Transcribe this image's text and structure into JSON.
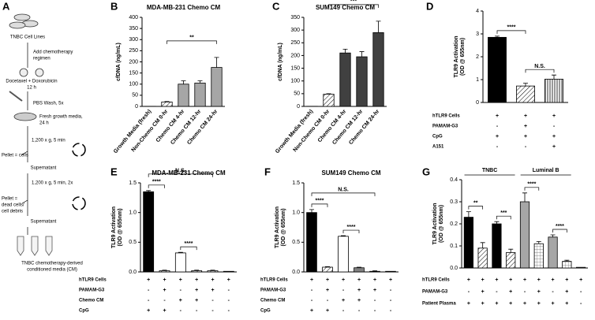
{
  "panel_a": {
    "label": "A",
    "lines": [
      "TNBC Cell Lines",
      "Add chemotherapy",
      "regimen",
      "Docetaxel + Doxorubicin",
      "12 h",
      "PBS Wash, 5x",
      "Fresh growth media,",
      "24 h",
      "1,200 x g, 5 min",
      "Pellet = cells",
      "Supernatant",
      "1,200 x g, 5 min, 2x",
      "Pellet =",
      "dead cells/",
      "cell debris",
      "Supernatant",
      "TNBC chemotherapy-derived",
      "conditioned media (CM)"
    ]
  },
  "chart_data": [
    {
      "type": "bar",
      "label": "B",
      "title": "MDA-MB-231 Chemo CM",
      "y_label": [
        "cfDNA (ng/mL)"
      ],
      "categories": [
        "Growth Media (fresh)",
        "Non-Chemo CM 0-hr",
        "Chemo CM 4-hr",
        "Chemo CM 12-hr",
        "Chemo CM 24-hr"
      ],
      "series": [
        {
          "values": [
            0.5,
            20,
            100,
            105,
            175
          ],
          "errors": [
            0,
            2,
            15,
            10,
            45
          ],
          "colors": [
            "#ffffff",
            "#ffffff",
            "#a6a6a6",
            "#a6a6a6",
            "#a6a6a6"
          ],
          "patterns": [
            "none",
            "hatch",
            "none",
            "none",
            "none"
          ]
        }
      ],
      "ylim": [
        0,
        400
      ],
      "yticks": [
        0,
        50,
        100,
        150,
        200,
        250,
        300,
        350,
        400
      ],
      "brackets": [
        {
          "text": "**",
          "bars": [
            1,
            4
          ]
        }
      ]
    },
    {
      "type": "bar",
      "label": "C",
      "title": "SUM149 Chemo CM",
      "y_label": [
        "cfDNA (ng/mL)"
      ],
      "categories": [
        "Growth Media (fresh)",
        "Non-Chemo CM 0-hr",
        "Chemo CM 4-hr",
        "Chemo CM 12-hr",
        "Chemo CM 24-hr"
      ],
      "series": [
        {
          "values": [
            0.5,
            48,
            210,
            195,
            290
          ],
          "errors": [
            0,
            2,
            15,
            20,
            45
          ],
          "colors": [
            "#ffffff",
            "#ffffff",
            "#404040",
            "#404040",
            "#404040"
          ],
          "patterns": [
            "none",
            "hatch",
            "none",
            "none",
            "none"
          ]
        }
      ],
      "ylim": [
        0,
        350
      ],
      "yticks": [
        0,
        50,
        100,
        150,
        200,
        250,
        300,
        350
      ],
      "brackets": [
        {
          "text": "***",
          "bars": [
            1,
            4
          ]
        }
      ]
    },
    {
      "type": "bar",
      "label": "D",
      "y_label": [
        "TLR9 Activation",
        "(OD @ 655nm)"
      ],
      "series": [
        {
          "values": [
            2.85,
            0.72,
            1.02
          ],
          "errors": [
            0.05,
            0.12,
            0.18
          ],
          "colors": [
            "#000000",
            "#ffffff",
            "#ffffff"
          ],
          "patterns": [
            "none",
            "hatch",
            "vlines"
          ]
        }
      ],
      "ylim": [
        0,
        4
      ],
      "yticks": [
        0,
        1,
        2,
        3,
        4
      ],
      "brackets": [
        {
          "text": "****",
          "bars": [
            0,
            1
          ]
        },
        {
          "text": "N.S.",
          "bars": [
            1,
            2
          ]
        }
      ],
      "conditions": [
        {
          "name": "hTLR9 Cells",
          "values": [
            "+",
            "+",
            "+"
          ]
        },
        {
          "name": "PAMAM-G3",
          "values": [
            "-",
            "+",
            "-"
          ]
        },
        {
          "name": "CpG",
          "values": [
            "+",
            "+",
            "+"
          ]
        },
        {
          "name": "A151",
          "values": [
            "-",
            "-",
            "+"
          ]
        }
      ]
    },
    {
      "type": "bar",
      "label": "E",
      "title": "MDA-MB-231 Chemo CM",
      "y_label": [
        "TLR9 Activation",
        "(OD @ 655nm)"
      ],
      "series": [
        {
          "values": [
            1.35,
            0.02,
            0.32,
            0.02,
            0.02,
            0.01
          ],
          "errors": [
            0.02,
            0.01,
            0.01,
            0.01,
            0.01,
            0
          ],
          "colors": [
            "#000000",
            "#ffffff",
            "#ffffff",
            "#ffffff",
            "#ffffff",
            "#ffffff"
          ],
          "patterns": [
            "none",
            "hatch",
            "none",
            "hatch",
            "hatch",
            "none"
          ]
        }
      ],
      "ylim": [
        0,
        1.5
      ],
      "yticks": [
        {
          "value": 0,
          "label": "0.0"
        },
        0.5,
        {
          "value": 1,
          "label": "1.0"
        },
        1.5
      ],
      "brackets": [
        {
          "text": "****",
          "bars": [
            0,
            1
          ]
        },
        {
          "text": "N.S.",
          "bars": [
            0,
            4
          ]
        },
        {
          "text": "****",
          "bars": [
            2,
            3
          ]
        }
      ],
      "conditions": [
        {
          "name": "hTLR9 Cells",
          "values": [
            "+",
            "+",
            "+",
            "+",
            "+",
            "+"
          ]
        },
        {
          "name": "PAMAM-G3",
          "values": [
            "-",
            "+",
            "-",
            "+",
            "+",
            "-"
          ]
        },
        {
          "name": "Chemo CM",
          "values": [
            "-",
            "-",
            "+",
            "+",
            "-",
            "-"
          ]
        },
        {
          "name": "CpG",
          "values": [
            "+",
            "+",
            "-",
            "-",
            "-",
            "-"
          ]
        }
      ]
    },
    {
      "type": "bar",
      "label": "F",
      "title": "SUM149 Chemo CM",
      "y_label": [
        "TLR9 Activation",
        "(OD @ 655nm)"
      ],
      "series": [
        {
          "values": [
            1.0,
            0.08,
            0.6,
            0.07,
            0.01,
            0.01
          ],
          "errors": [
            0.05,
            0.01,
            0.01,
            0.01,
            0.01,
            0
          ],
          "colors": [
            "#000000",
            "#ffffff",
            "#ffffff",
            "#808080",
            "#ffffff",
            "#ffffff"
          ],
          "patterns": [
            "none",
            "hatch",
            "none",
            "none",
            "none",
            "none"
          ]
        }
      ],
      "ylim": [
        0,
        1.5
      ],
      "yticks": [
        {
          "value": 0,
          "label": "0.0"
        },
        0.5,
        {
          "value": 1,
          "label": "1.0"
        },
        1.5
      ],
      "brackets": [
        {
          "text": "****",
          "bars": [
            0,
            1
          ]
        },
        {
          "text": "N.S.",
          "bars": [
            0,
            4
          ]
        },
        {
          "text": "****",
          "bars": [
            2,
            3
          ]
        }
      ],
      "conditions": [
        {
          "name": "hTLR9 Cells",
          "values": [
            "+",
            "+",
            "+",
            "+",
            "+",
            "+"
          ]
        },
        {
          "name": "PAMAM-G3",
          "values": [
            "-",
            "+",
            "-",
            "+",
            "+",
            "-"
          ]
        },
        {
          "name": "Chemo CM",
          "values": [
            "-",
            "-",
            "+",
            "+",
            "-",
            "-"
          ]
        },
        {
          "name": "CpG",
          "values": [
            "+",
            "+",
            "-",
            "-",
            "-",
            "-"
          ]
        }
      ]
    },
    {
      "type": "bar",
      "label": "G",
      "y_label": [
        "TLR9 Activation",
        "(OD @ 655nm)"
      ],
      "series": [
        {
          "values": [
            0.23,
            0.09,
            0.2,
            0.07,
            0.3,
            0.11,
            0.14,
            0.03,
            0.003
          ],
          "errors": [
            0.025,
            0.025,
            0.01,
            0.015,
            0.04,
            0.01,
            0.01,
            0.005,
            0
          ],
          "colors": [
            "#000000",
            "#ffffff",
            "#000000",
            "#ffffff",
            "#a6a6a6",
            "#ffffff",
            "#a6a6a6",
            "#ffffff",
            "#ffffff"
          ],
          "patterns": [
            "none",
            "hatch",
            "none",
            "hatch",
            "none",
            "grid",
            "none",
            "grid",
            "none"
          ]
        }
      ],
      "ylim": [
        0,
        0.4
      ],
      "yticks": [
        {
          "value": 0,
          "label": "0.0"
        },
        0.1,
        0.2,
        0.3,
        0.4
      ],
      "brackets": [
        {
          "text": "**",
          "bars": [
            0,
            1
          ]
        },
        {
          "text": "***",
          "bars": [
            2,
            3
          ]
        },
        {
          "text": "****",
          "bars": [
            4,
            5
          ]
        },
        {
          "text": "****",
          "bars": [
            6,
            7
          ]
        }
      ],
      "groups": [
        {
          "name": "TNBC",
          "bars": [
            0,
            3
          ]
        },
        {
          "name": "Luminal B",
          "bars": [
            4,
            7
          ]
        }
      ],
      "conditions": [
        {
          "name": "hTLR9 Cells",
          "values": [
            "+",
            "+",
            "+",
            "+",
            "+",
            "+",
            "+",
            "+",
            "+"
          ]
        },
        {
          "name": "PAMAM-G3",
          "values": [
            "-",
            "+",
            "-",
            "+",
            "-",
            "+",
            "-",
            "+",
            "-"
          ]
        },
        {
          "name": "Patient Plasma",
          "values": [
            "+",
            "+",
            "+",
            "+",
            "+",
            "+",
            "+",
            "+",
            "-"
          ]
        }
      ]
    }
  ]
}
